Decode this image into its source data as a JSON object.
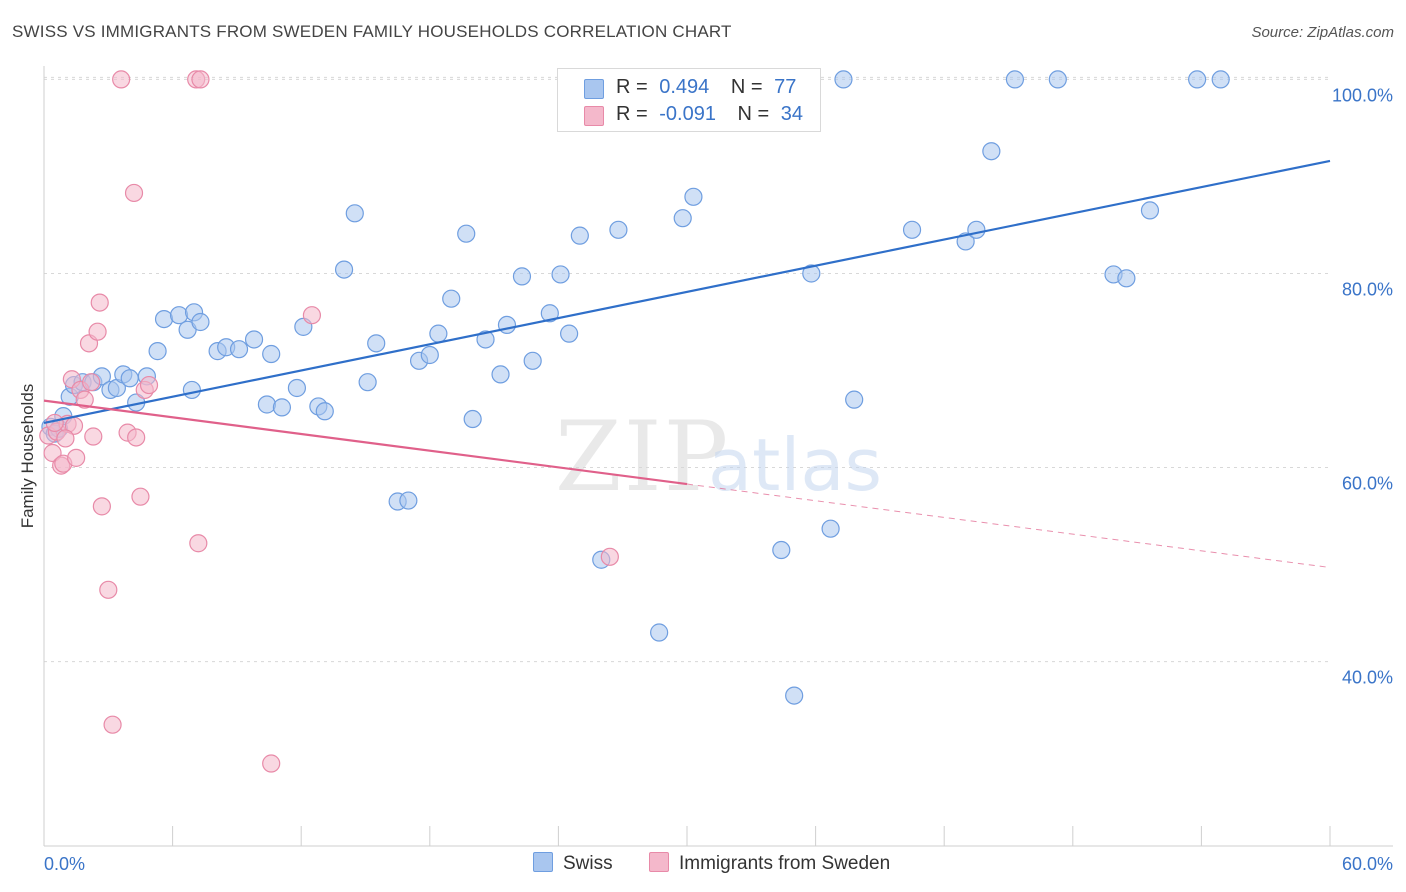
{
  "title": "SWISS VS IMMIGRANTS FROM SWEDEN FAMILY HOUSEHOLDS CORRELATION CHART",
  "source": "Source: ZipAtlas.com",
  "watermark": {
    "zip": "ZIP",
    "atlas": "atlas"
  },
  "legend_top": [
    {
      "r_label": "R =",
      "r_value": "0.494",
      "n_label": "N =",
      "n_value": "77"
    },
    {
      "r_label": "R =",
      "r_value": "-0.091",
      "n_label": "N =",
      "n_value": "34"
    }
  ],
  "colors": {
    "swiss_fill": "#a9c6ef",
    "swiss_stroke": "#6f9ee0",
    "swiss_line": "#2f6fc9",
    "sweden_fill": "#f4b8cb",
    "sweden_stroke": "#e88aa8",
    "sweden_line": "#e0608a",
    "tick_label": "#3a74c8",
    "grid": "#d8d8d8"
  },
  "chart_data": {
    "type": "scatter",
    "title": "SWISS VS IMMIGRANTS FROM SWEDEN FAMILY HOUSEHOLDS CORRELATION CHART",
    "xlabel": "",
    "ylabel": "Family Households",
    "xlim": [
      0,
      60
    ],
    "ylim": [
      21,
      102
    ],
    "x_tick_labels": [
      "0.0%",
      "60.0%"
    ],
    "y_ticks": [
      40,
      60,
      80,
      100
    ],
    "y_tick_labels": [
      "40.0%",
      "60.0%",
      "80.0%",
      "100.0%"
    ],
    "grid": true,
    "legend_placement": "bottom",
    "series": [
      {
        "name": "Swiss",
        "R": 0.494,
        "N": 77,
        "trend": {
          "x0": 0,
          "y0": 64.6,
          "x1": 60,
          "y1": 91.6,
          "solid_to": 60
        },
        "points": [
          [
            0.3,
            64.2
          ],
          [
            0.5,
            63.5
          ],
          [
            0.7,
            64.0
          ],
          [
            0.9,
            65.3
          ],
          [
            1.2,
            67.3
          ],
          [
            1.4,
            68.5
          ],
          [
            1.8,
            68.8
          ],
          [
            2.3,
            68.8
          ],
          [
            2.7,
            69.4
          ],
          [
            3.1,
            68.0
          ],
          [
            3.4,
            68.2
          ],
          [
            3.7,
            69.6
          ],
          [
            4.0,
            69.2
          ],
          [
            4.3,
            66.7
          ],
          [
            4.8,
            69.4
          ],
          [
            5.3,
            72.0
          ],
          [
            5.6,
            75.3
          ],
          [
            6.3,
            75.7
          ],
          [
            6.7,
            74.2
          ],
          [
            7.0,
            76.0
          ],
          [
            7.3,
            75.0
          ],
          [
            6.9,
            68.0
          ],
          [
            8.1,
            72.0
          ],
          [
            8.5,
            72.4
          ],
          [
            9.1,
            72.2
          ],
          [
            9.8,
            73.2
          ],
          [
            10.4,
            66.5
          ],
          [
            10.6,
            71.7
          ],
          [
            11.1,
            66.2
          ],
          [
            11.8,
            68.2
          ],
          [
            12.1,
            74.5
          ],
          [
            12.8,
            66.3
          ],
          [
            13.1,
            65.8
          ],
          [
            14.0,
            80.4
          ],
          [
            14.5,
            86.2
          ],
          [
            15.1,
            68.8
          ],
          [
            15.5,
            72.8
          ],
          [
            16.5,
            56.5
          ],
          [
            17.0,
            56.6
          ],
          [
            17.5,
            71.0
          ],
          [
            18.0,
            71.6
          ],
          [
            18.4,
            73.8
          ],
          [
            19.0,
            77.4
          ],
          [
            19.7,
            84.1
          ],
          [
            20.0,
            65.0
          ],
          [
            20.6,
            73.2
          ],
          [
            21.3,
            69.6
          ],
          [
            21.6,
            74.7
          ],
          [
            22.3,
            79.7
          ],
          [
            22.8,
            71.0
          ],
          [
            23.6,
            75.9
          ],
          [
            24.1,
            79.9
          ],
          [
            24.5,
            73.8
          ],
          [
            25.0,
            83.9
          ],
          [
            26.0,
            50.5
          ],
          [
            26.8,
            84.5
          ],
          [
            28.7,
            43.0
          ],
          [
            29.8,
            85.7
          ],
          [
            30.3,
            87.9
          ],
          [
            31.4,
            100.0
          ],
          [
            34.4,
            51.5
          ],
          [
            35.0,
            36.5
          ],
          [
            35.8,
            80.0
          ],
          [
            36.7,
            53.7
          ],
          [
            37.3,
            100.0
          ],
          [
            37.8,
            67.0
          ],
          [
            40.5,
            84.5
          ],
          [
            43.0,
            83.3
          ],
          [
            43.5,
            84.5
          ],
          [
            44.2,
            92.6
          ],
          [
            45.3,
            100.0
          ],
          [
            47.3,
            100.0
          ],
          [
            49.9,
            79.9
          ],
          [
            50.5,
            79.5
          ],
          [
            51.6,
            86.5
          ],
          [
            53.8,
            100.0
          ],
          [
            54.9,
            100.0
          ]
        ]
      },
      {
        "name": "Immigrants from Sweden",
        "R": -0.091,
        "N": 34,
        "trend": {
          "x0": 0,
          "y0": 66.9,
          "x1": 60,
          "y1": 49.7,
          "solid_to": 30
        },
        "points": [
          [
            0.2,
            63.3
          ],
          [
            0.4,
            61.5
          ],
          [
            0.6,
            63.7
          ],
          [
            0.8,
            60.2
          ],
          [
            0.9,
            60.4
          ],
          [
            1.1,
            64.5
          ],
          [
            1.3,
            69.1
          ],
          [
            1.4,
            64.3
          ],
          [
            1.5,
            61.0
          ],
          [
            1.7,
            68.0
          ],
          [
            1.9,
            67.0
          ],
          [
            2.1,
            72.8
          ],
          [
            2.2,
            68.8
          ],
          [
            2.3,
            63.2
          ],
          [
            2.5,
            74.0
          ],
          [
            2.6,
            77.0
          ],
          [
            2.7,
            56.0
          ],
          [
            3.0,
            47.4
          ],
          [
            3.2,
            33.5
          ],
          [
            3.6,
            100.0
          ],
          [
            3.9,
            63.6
          ],
          [
            4.2,
            88.3
          ],
          [
            4.3,
            63.1
          ],
          [
            4.5,
            57.0
          ],
          [
            4.7,
            68.0
          ],
          [
            4.9,
            68.5
          ],
          [
            7.1,
            100.0
          ],
          [
            7.3,
            100.0
          ],
          [
            7.2,
            52.2
          ],
          [
            10.6,
            29.5
          ],
          [
            12.5,
            75.7
          ],
          [
            26.4,
            50.8
          ],
          [
            1.0,
            63.0
          ],
          [
            0.5,
            64.6
          ]
        ]
      }
    ]
  },
  "bottom_legend": [
    "Swiss",
    "Immigrants from Sweden"
  ]
}
